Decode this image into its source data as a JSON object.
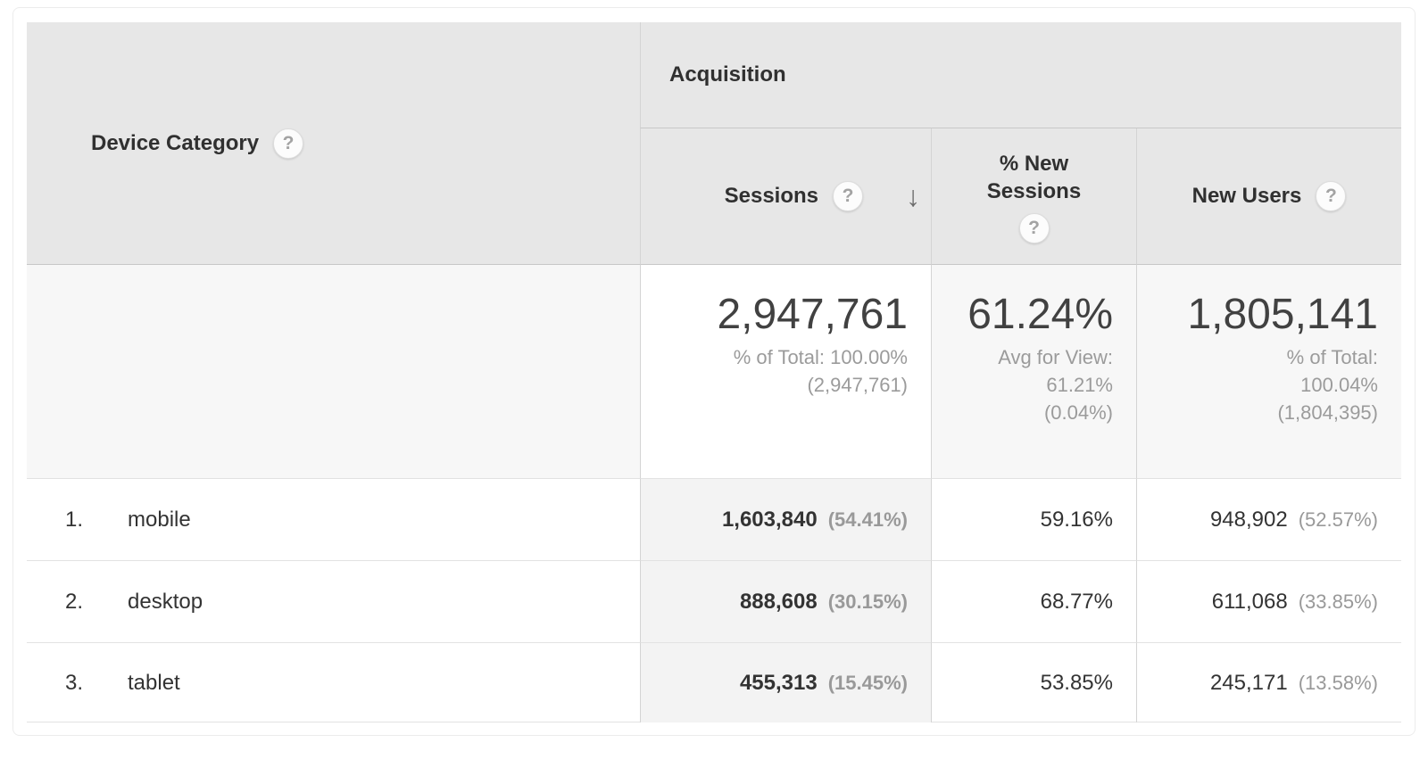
{
  "table": {
    "dimension_header": {
      "label": "Device Category"
    },
    "group_header": {
      "label": "Acquisition"
    },
    "columns": [
      {
        "label": "Sessions",
        "sorted": "descending"
      },
      {
        "label_line1": "% New",
        "label_line2": "Sessions"
      },
      {
        "label": "New Users"
      }
    ],
    "summary": {
      "sessions": {
        "value": "2,947,761",
        "line1": "% of Total: 100.00%",
        "line2": "(2,947,761)"
      },
      "new_sessions": {
        "value": "61.24%",
        "line1": "Avg for View:",
        "line2": "61.21%",
        "line3": "(0.04%)"
      },
      "new_users": {
        "value": "1,805,141",
        "line1": "% of Total:",
        "line2": "100.04%",
        "line3": "(1,804,395)"
      }
    },
    "rows": [
      {
        "rank": "1.",
        "device": "mobile",
        "sessions": "1,603,840",
        "sessions_pct": "(54.41%)",
        "new_sessions_pct": "59.16%",
        "new_users": "948,902",
        "new_users_pct": "(52.57%)"
      },
      {
        "rank": "2.",
        "device": "desktop",
        "sessions": "888,608",
        "sessions_pct": "(30.15%)",
        "new_sessions_pct": "68.77%",
        "new_users": "611,068",
        "new_users_pct": "(33.85%)"
      },
      {
        "rank": "3.",
        "device": "tablet",
        "sessions": "455,313",
        "sessions_pct": "(15.45%)",
        "new_sessions_pct": "53.85%",
        "new_users": "245,171",
        "new_users_pct": "(13.58%)"
      }
    ]
  },
  "icons": {
    "help": "?",
    "sort_desc": "↓"
  },
  "colors": {
    "header_bg": "#e7e7e7",
    "summary_bg": "#f7f7f7",
    "sorted_column_bg": "#f3f3f3",
    "grid_border": "#d4d4d4",
    "row_border": "#e2e2e2",
    "text_dark": "#333333",
    "text_gray": "#9b9b9b",
    "big_number": "#414141"
  }
}
